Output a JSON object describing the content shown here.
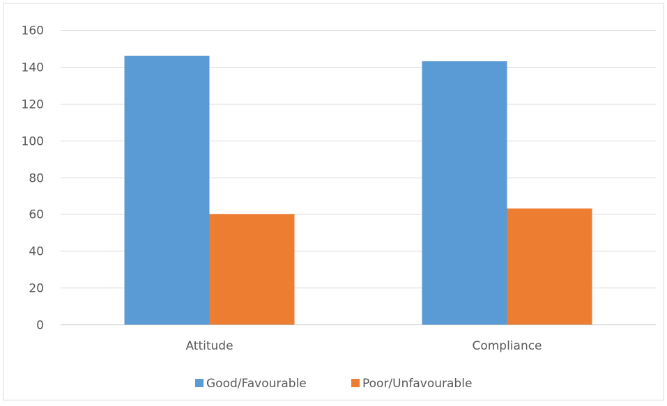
{
  "chart_data": {
    "type": "bar",
    "title": "",
    "xlabel": "",
    "ylabel": "",
    "categories": [
      "Attitude",
      "Compliance"
    ],
    "series": [
      {
        "name": "Good/Favourable",
        "values": [
          146,
          143
        ],
        "color": "#5b9bd5"
      },
      {
        "name": "Poor/Unfavourable",
        "values": [
          60,
          63
        ],
        "color": "#ed7d31"
      }
    ],
    "ylim": [
      0,
      160
    ],
    "yticks": [
      0,
      20,
      40,
      60,
      80,
      100,
      120,
      140,
      160
    ],
    "grid": true,
    "legend_position": "bottom"
  }
}
